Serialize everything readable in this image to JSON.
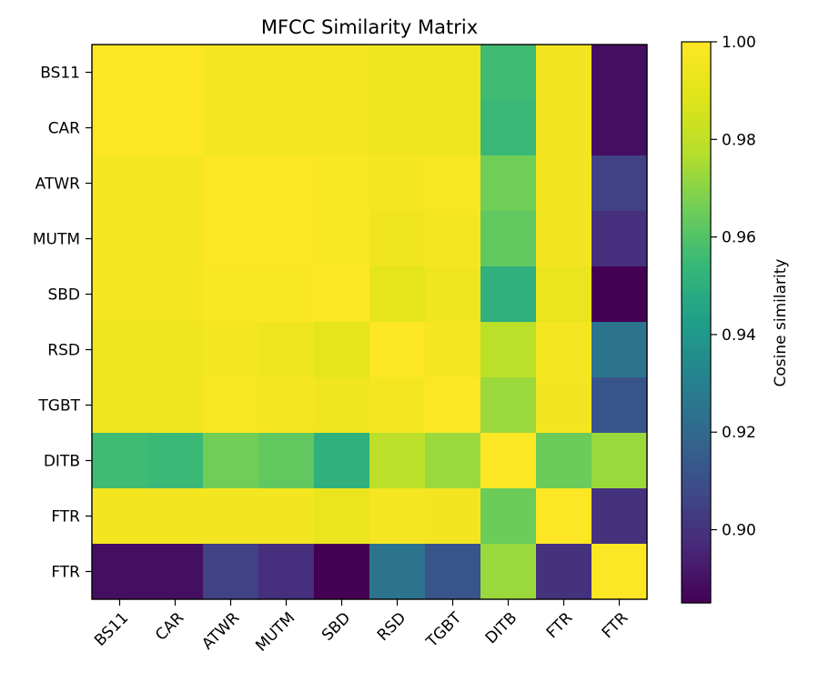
{
  "chart_data": {
    "type": "heatmap",
    "title": "MFCC Similarity Matrix",
    "row_labels": [
      "BS11",
      "CAR",
      "ATWR",
      "MUTM",
      "SBD",
      "RSD",
      "TGBT",
      "DITB",
      "FTR",
      "FTR"
    ],
    "col_labels": [
      "BS11",
      "CAR",
      "ATWR",
      "MUTM",
      "SBD",
      "RSD",
      "TGBT",
      "DITB",
      "FTR",
      "FTR"
    ],
    "values": [
      [
        1.0,
        1.0,
        0.997,
        0.997,
        0.997,
        0.995,
        0.995,
        0.956,
        0.996,
        0.889
      ],
      [
        1.0,
        1.0,
        0.997,
        0.997,
        0.997,
        0.995,
        0.995,
        0.955,
        0.996,
        0.889
      ],
      [
        0.997,
        0.997,
        1.0,
        1.0,
        0.999,
        0.997,
        0.998,
        0.966,
        0.996,
        0.905
      ],
      [
        0.997,
        0.997,
        1.0,
        1.0,
        0.999,
        0.995,
        0.997,
        0.963,
        0.996,
        0.899
      ],
      [
        0.997,
        0.997,
        0.999,
        0.999,
        1.0,
        0.991,
        0.995,
        0.951,
        0.993,
        0.885
      ],
      [
        0.995,
        0.995,
        0.997,
        0.995,
        0.991,
        1.0,
        0.997,
        0.979,
        0.997,
        0.925
      ],
      [
        0.995,
        0.995,
        0.998,
        0.997,
        0.995,
        0.997,
        1.0,
        0.973,
        0.996,
        0.912
      ],
      [
        0.956,
        0.955,
        0.966,
        0.963,
        0.951,
        0.979,
        0.973,
        1.0,
        0.965,
        0.973
      ],
      [
        0.996,
        0.996,
        0.996,
        0.996,
        0.993,
        0.997,
        0.996,
        0.965,
        1.0,
        0.9
      ],
      [
        0.889,
        0.889,
        0.905,
        0.899,
        0.885,
        0.925,
        0.912,
        0.973,
        0.9,
        1.0
      ]
    ],
    "colormap": "viridis",
    "vmin": 0.885,
    "vmax": 1.0,
    "colorbar": {
      "label": "Cosine similarity",
      "ticks": [
        0.9,
        0.92,
        0.94,
        0.96,
        0.98,
        1.0
      ],
      "tick_labels": [
        "0.90",
        "0.92",
        "0.94",
        "0.96",
        "0.98",
        "1.00"
      ]
    }
  }
}
